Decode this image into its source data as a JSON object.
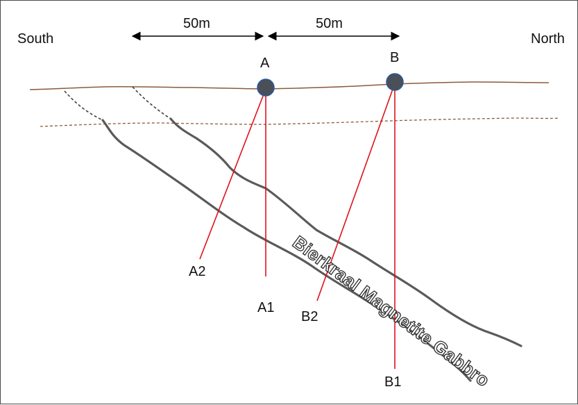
{
  "directions": {
    "left": "South",
    "right": "North"
  },
  "distances": {
    "left_span": "50m",
    "right_span": "50m"
  },
  "collars": {
    "a": "A",
    "b": "B"
  },
  "holes": {
    "a1": "A1",
    "a2": "A2",
    "b1": "B1",
    "b2": "B2"
  },
  "formation_label": "Bierkraal Magnetite Gabbro",
  "colors": {
    "surface": "#8b5a3c",
    "weathering_line": "#8b5a3c",
    "gabbro_contacts": "#595959",
    "drillholes": "#e0101a",
    "collar_fill": "#4a4f58",
    "collar_stroke": "#2c5a9e"
  }
}
